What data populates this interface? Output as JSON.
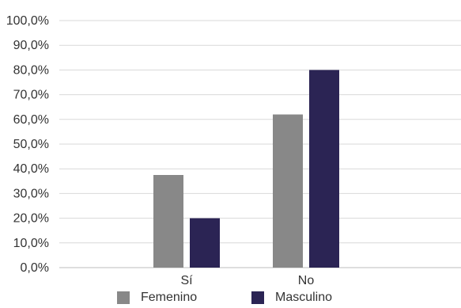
{
  "chart_data": {
    "type": "bar",
    "categories": [
      "Sí",
      "No"
    ],
    "series": [
      {
        "name": "Femenino",
        "values": [
          37.5,
          62.0
        ],
        "color": "#888888"
      },
      {
        "name": "Masculino",
        "values": [
          20.0,
          80.0
        ],
        "color": "#2b2454"
      }
    ],
    "yticks": [
      "0,0%",
      "10,0%",
      "20,0%",
      "30,0%",
      "40,0%",
      "50,0%",
      "60,0%",
      "70,0%",
      "80,0%",
      "90,0%",
      "100,0%"
    ],
    "ylim": [
      0,
      100
    ],
    "grid": true,
    "legend_position": "bottom"
  }
}
